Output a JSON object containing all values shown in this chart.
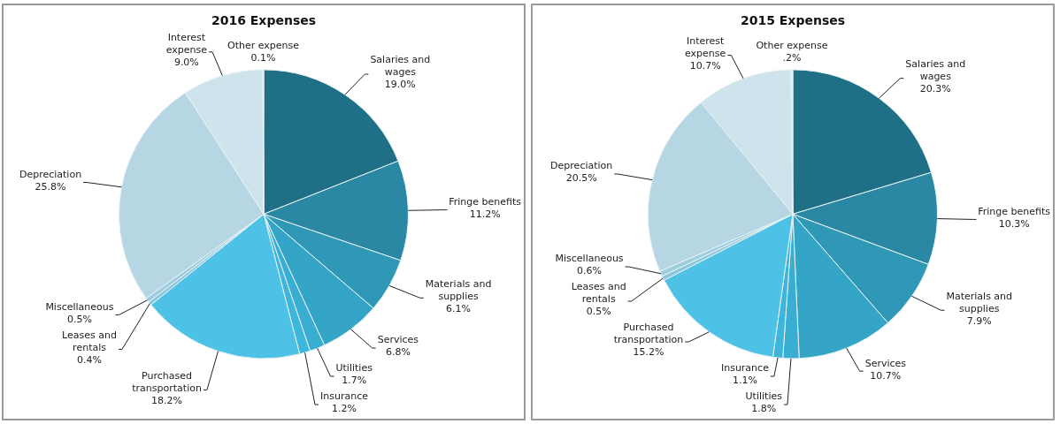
{
  "chart_data": [
    {
      "type": "pie",
      "title": "2016 Expenses",
      "legend": false,
      "categories": [
        "Salaries and wages",
        "Fringe benefits",
        "Materials and supplies",
        "Services",
        "Utilities",
        "Insurance",
        "Purchased transportation",
        "Leases and rentals",
        "Miscellaneous",
        "Depreciation",
        "Interest expense",
        "Other expense"
      ],
      "values": [
        19.0,
        11.2,
        6.1,
        6.8,
        1.7,
        1.2,
        18.2,
        0.4,
        0.5,
        25.8,
        9.0,
        0.1
      ],
      "value_labels": [
        "19.0%",
        "11.2%",
        "6.1%",
        "6.8%",
        "1.7%",
        "1.2%",
        "18.2%",
        "0.4%",
        "0.5%",
        "25.8%",
        "9.0%",
        "0.1%"
      ],
      "colors": [
        "#1f6f86",
        "#2a88a4",
        "#2f98b6",
        "#34a5c6",
        "#39aed2",
        "#3eb5da",
        "#4dc1e6",
        "#8cc6dc",
        "#9fcde0",
        "#b6d6e4",
        "#cfe3ec",
        "#dfeaf0"
      ]
    },
    {
      "type": "pie",
      "title": "2015 Expenses",
      "legend": false,
      "categories": [
        "Salaries and wages",
        "Fringe benefits",
        "Materials and supplies",
        "Services",
        "Utilities",
        "Insurance",
        "Purchased transportation",
        "Leases and rentals",
        "Miscellaneous",
        "Depreciation",
        "Interest expense",
        "Other expense"
      ],
      "values": [
        20.3,
        10.3,
        7.9,
        10.7,
        1.8,
        1.1,
        15.2,
        0.5,
        0.6,
        20.5,
        10.7,
        0.2
      ],
      "value_labels": [
        "20.3%",
        "10.3%",
        "7.9%",
        "10.7%",
        "1.8%",
        "1.1%",
        "15.2%",
        "0.5%",
        "0.6%",
        "20.5%",
        "10.7%",
        ".2%"
      ],
      "colors": [
        "#1f6f86",
        "#2a88a4",
        "#2f98b6",
        "#34a5c6",
        "#39aed2",
        "#3eb5da",
        "#4dc1e6",
        "#8cc6dc",
        "#9fcde0",
        "#b6d6e4",
        "#cfe3ec",
        "#dfeaf0"
      ]
    }
  ]
}
